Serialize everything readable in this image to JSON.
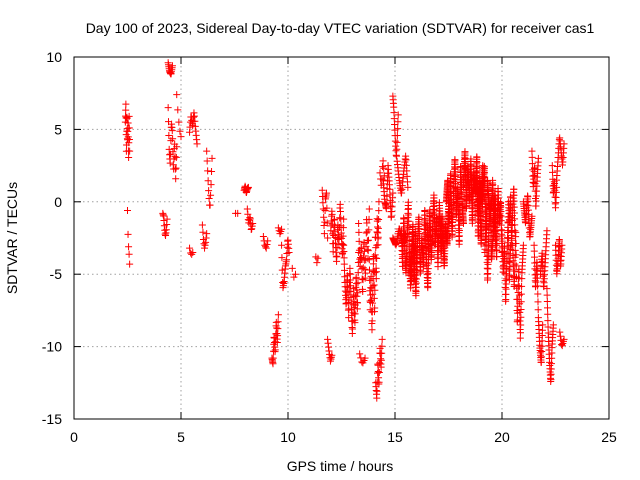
{
  "chart_data": {
    "type": "scatter",
    "title": "Day 100 of 2023, Sidereal Day-to-day VTEC variation (SDTVAR) for receiver cas1",
    "xlabel": "GPS time / hours",
    "ylabel": "SDTVAR / TECUs",
    "xlim": [
      0,
      25
    ],
    "ylim": [
      -15,
      10
    ],
    "xticks": [
      0,
      5,
      10,
      15,
      20,
      25
    ],
    "yticks": [
      -15,
      -10,
      -5,
      0,
      5,
      10
    ],
    "xtick_labels": [
      "0",
      "5",
      "10",
      "15",
      "20",
      "25"
    ],
    "ytick_labels": [
      "-15",
      "-10",
      "-5",
      "0",
      "5",
      "10"
    ],
    "grid": true,
    "marker": "+",
    "color": "#ff0000",
    "series": [
      {
        "name": "SDTVAR",
        "segments": [
          {
            "x0": 2.4,
            "x1": 2.6,
            "n": 26,
            "y": [
              5.5,
              6.8,
              3.2,
              6.2,
              4.0,
              5.8,
              2.8,
              6.0,
              3.5
            ]
          },
          {
            "x0": 2.5,
            "x1": 2.6,
            "n": 5,
            "y": [
              -0.6,
              -2.8,
              -3.4,
              -4.3
            ]
          },
          {
            "x0": 4.15,
            "x1": 4.35,
            "n": 12,
            "y": [
              -0.8,
              -1.0,
              -1.8,
              -2.4,
              -2.0,
              -1.2
            ]
          },
          {
            "x0": 4.4,
            "x1": 4.6,
            "n": 14,
            "y": [
              9.6,
              9.0,
              8.8,
              9.4
            ]
          },
          {
            "x0": 4.4,
            "x1": 4.8,
            "n": 26,
            "y": [
              6.5,
              3.5,
              2.6,
              5.5,
              4.8,
              2.0,
              4.2,
              1.5,
              3.8
            ]
          },
          {
            "x0": 4.8,
            "x1": 5.0,
            "n": 5,
            "y": [
              7.4,
              6.0,
              5.0,
              4.5
            ]
          },
          {
            "x0": 5.4,
            "x1": 5.75,
            "n": 18,
            "y": [
              4.8,
              6.0,
              5.2,
              6.2,
              5.0,
              4.0
            ]
          },
          {
            "x0": 5.4,
            "x1": 5.55,
            "n": 4,
            "y": [
              -3.2,
              -3.7,
              -3.5
            ]
          },
          {
            "x0": 6.0,
            "x1": 6.2,
            "n": 9,
            "y": [
              -1.6,
              -2.6,
              -3.2,
              -2.8,
              -2.2
            ]
          },
          {
            "x0": 6.2,
            "x1": 6.45,
            "n": 12,
            "y": [
              3.5,
              2.0,
              0.5,
              -0.5,
              1.0,
              3.0
            ]
          },
          {
            "x0": 7.55,
            "x1": 7.65,
            "n": 2,
            "y": [
              -0.8,
              -0.8
            ]
          },
          {
            "x0": 7.95,
            "x1": 8.15,
            "n": 14,
            "y": [
              0.8,
              1.1,
              0.6,
              0.9,
              1.0
            ]
          },
          {
            "x0": 8.1,
            "x1": 8.35,
            "n": 12,
            "y": [
              -0.5,
              -1.5,
              -1.0,
              -2.0,
              -1.5
            ]
          },
          {
            "x0": 8.85,
            "x1": 9.05,
            "n": 7,
            "y": [
              -2.4,
              -3.0,
              -3.2,
              -2.7
            ]
          },
          {
            "x0": 9.25,
            "x1": 9.55,
            "n": 26,
            "y": [
              -10.8,
              -11.2,
              -9.2,
              -10.5,
              -8.2,
              -9.8,
              -7.8
            ]
          },
          {
            "x0": 9.55,
            "x1": 9.7,
            "n": 5,
            "y": [
              -1.8,
              -2.2,
              -1.9
            ]
          },
          {
            "x0": 9.7,
            "x1": 10.05,
            "n": 22,
            "y": [
              -3.0,
              -6.0,
              -5.5,
              -4.5,
              -4.0,
              -2.5,
              -3.5
            ]
          },
          {
            "x0": 10.2,
            "x1": 10.35,
            "n": 3,
            "y": [
              -4.6,
              -5.2,
              -5.0
            ]
          },
          {
            "x0": 11.3,
            "x1": 11.4,
            "n": 3,
            "y": [
              -3.8,
              -4.2,
              -3.9
            ]
          },
          {
            "x0": 11.6,
            "x1": 11.85,
            "n": 16,
            "y": [
              0.8,
              -0.5,
              -2.2,
              0.2,
              0.6,
              -2.5
            ]
          },
          {
            "x0": 11.85,
            "x1": 12.05,
            "n": 10,
            "y": [
              -9.5,
              -10.3,
              -11.0,
              -10.6
            ]
          },
          {
            "x0": 12.0,
            "x1": 12.6,
            "n": 50,
            "y": [
              -2.0,
              -0.5,
              -3.5,
              -1.0,
              -2.8,
              -4.2,
              -1.5,
              -3.0,
              0.0,
              -2.2,
              -3.8,
              -1.2
            ]
          },
          {
            "x0": 12.6,
            "x1": 13.3,
            "n": 70,
            "y": [
              -3.0,
              -5.5,
              -7.2,
              -5.0,
              -8.0,
              -4.5,
              -6.8,
              -9.2,
              -6.0,
              -8.5,
              -5.0,
              -7.5,
              -3.5
            ]
          },
          {
            "x0": 13.3,
            "x1": 13.8,
            "n": 40,
            "y": [
              -1.5,
              -4.5,
              -3.0,
              -6.5,
              -2.5,
              -5.5,
              -1.0,
              -4.0,
              -0.5
            ]
          },
          {
            "x0": 13.35,
            "x1": 13.6,
            "n": 6,
            "y": [
              -10.5,
              -11.2,
              -10.8
            ]
          },
          {
            "x0": 13.8,
            "x1": 14.25,
            "n": 55,
            "y": [
              -4.0,
              -7.5,
              -5.0,
              -9.0,
              -6.0,
              -3.5,
              -8.0,
              -2.0,
              -5.5,
              -1.0,
              -3.0,
              0.0
            ]
          },
          {
            "x0": 14.1,
            "x1": 14.4,
            "n": 26,
            "y": [
              -12.5,
              -13.6,
              -11.0,
              -12.8,
              -10.0,
              -11.5,
              -9.5
            ]
          },
          {
            "x0": 14.3,
            "x1": 14.5,
            "n": 8,
            "y": [
              2.0,
              1.0,
              3.0,
              1.8
            ]
          },
          {
            "x0": 14.45,
            "x1": 14.9,
            "n": 35,
            "y": [
              1.5,
              0.0,
              -0.5,
              2.5,
              1.0,
              -1.2,
              0.6
            ]
          },
          {
            "x0": 14.9,
            "x1": 15.15,
            "n": 20,
            "y": [
              7.3,
              6.5,
              5.2,
              4.0,
              3.0,
              4.5,
              6.0
            ]
          },
          {
            "x0": 14.9,
            "x1": 15.5,
            "n": 30,
            "y": [
              -2.5,
              -3.0,
              -1.8,
              -2.9,
              -2.2
            ]
          },
          {
            "x0": 15.1,
            "x1": 15.6,
            "n": 30,
            "y": [
              2.8,
              1.5,
              0.5,
              2.0,
              3.2,
              1.0
            ]
          },
          {
            "x0": 15.3,
            "x1": 16.0,
            "n": 120,
            "y": [
              -2.0,
              -4.5,
              -1.0,
              -3.5,
              -5.0,
              -2.5,
              0.0,
              -4.0,
              -6.0,
              -3.0,
              -1.5,
              -5.5,
              -2.0,
              -4.5
            ]
          },
          {
            "x0": 15.7,
            "x1": 16.6,
            "n": 160,
            "y": [
              -3.5,
              -5.5,
              -2.0,
              -4.0,
              -6.5,
              -3.0,
              -1.0,
              -5.0,
              -2.5,
              -4.5,
              -0.5,
              -3.5,
              -6.0,
              -2.0
            ]
          },
          {
            "x0": 16.5,
            "x1": 17.2,
            "n": 140,
            "y": [
              -1.5,
              -3.5,
              -0.5,
              -4.0,
              -2.0,
              0.5,
              -3.0,
              -1.0,
              -4.5,
              0.0,
              -2.5,
              -1.0
            ]
          },
          {
            "x0": 17.1,
            "x1": 17.5,
            "n": 90,
            "y": [
              -1.0,
              -3.5,
              -2.0,
              -4.5,
              -1.5,
              -3.0,
              -0.5
            ]
          },
          {
            "x0": 17.4,
            "x1": 18.2,
            "n": 180,
            "y": [
              0.0,
              1.5,
              -1.5,
              2.0,
              -2.5,
              0.5,
              3.0,
              -1.0,
              1.0,
              -3.0,
              2.5,
              0.0,
              -1.5
            ]
          },
          {
            "x0": 18.2,
            "x1": 19.1,
            "n": 220,
            "y": [
              1.0,
              3.5,
              -0.5,
              2.5,
              0.0,
              3.0,
              -1.5,
              2.0,
              0.5,
              3.2,
              -2.5,
              1.5,
              0.0,
              2.5
            ]
          },
          {
            "x0": 18.8,
            "x1": 19.4,
            "n": 120,
            "y": [
              2.0,
              -1.0,
              1.0,
              -3.0,
              0.5,
              2.5,
              -2.0,
              1.5,
              -0.5
            ]
          },
          {
            "x0": 19.2,
            "x1": 19.7,
            "n": 90,
            "y": [
              -3.5,
              -1.0,
              -5.5,
              -2.0,
              0.0,
              -4.0,
              -2.5,
              0.5,
              -3.0
            ]
          },
          {
            "x0": 19.5,
            "x1": 20.0,
            "n": 90,
            "y": [
              -0.5,
              1.5,
              -2.5,
              0.5,
              -4.0,
              1.0,
              -1.5,
              0.0,
              -3.5
            ]
          },
          {
            "x0": 20.0,
            "x1": 20.4,
            "n": 60,
            "y": [
              -2.0,
              -5.0,
              -3.0,
              -7.0,
              -4.0,
              -1.0,
              -5.5,
              -3.0
            ]
          },
          {
            "x0": 20.3,
            "x1": 20.6,
            "n": 45,
            "y": [
              0.0,
              -1.5,
              0.5,
              -3.0,
              -0.5,
              1.0,
              -2.0
            ]
          },
          {
            "x0": 20.5,
            "x1": 21.0,
            "n": 60,
            "y": [
              -3.0,
              -6.0,
              -2.0,
              -8.5,
              -4.5,
              -9.5,
              -5.0,
              -3.0
            ]
          },
          {
            "x0": 21.0,
            "x1": 21.4,
            "n": 40,
            "y": [
              0.0,
              -1.5,
              0.5,
              -2.5,
              -1.0
            ]
          },
          {
            "x0": 21.4,
            "x1": 21.7,
            "n": 30,
            "y": [
              3.5,
              1.0,
              2.5,
              -0.5,
              1.5,
              3.0
            ]
          },
          {
            "x0": 21.5,
            "x1": 21.9,
            "n": 45,
            "y": [
              -3.0,
              -6.0,
              -4.0,
              -8.0,
              -10.0,
              -11.2,
              -8.5
            ]
          },
          {
            "x0": 21.8,
            "x1": 22.1,
            "n": 30,
            "y": [
              -5.0,
              -3.5,
              -6.0,
              -4.0,
              -2.0
            ]
          },
          {
            "x0": 22.1,
            "x1": 22.4,
            "n": 35,
            "y": [
              -6.0,
              -9.0,
              -11.0,
              -12.5,
              -10.0,
              -8.5
            ]
          },
          {
            "x0": 22.35,
            "x1": 22.55,
            "n": 18,
            "y": [
              2.5,
              0.5,
              1.5,
              -0.5,
              1.0
            ]
          },
          {
            "x0": 22.5,
            "x1": 22.8,
            "n": 30,
            "y": [
              -3.0,
              -5.0,
              -4.0,
              -2.5,
              -4.5,
              -3.0
            ]
          },
          {
            "x0": 22.55,
            "x1": 22.9,
            "n": 25,
            "y": [
              1.5,
              3.0,
              4.5,
              3.5,
              2.5,
              4.0
            ]
          },
          {
            "x0": 22.7,
            "x1": 22.9,
            "n": 8,
            "y": [
              -9.0,
              -10.0,
              -9.5
            ]
          }
        ]
      }
    ]
  }
}
